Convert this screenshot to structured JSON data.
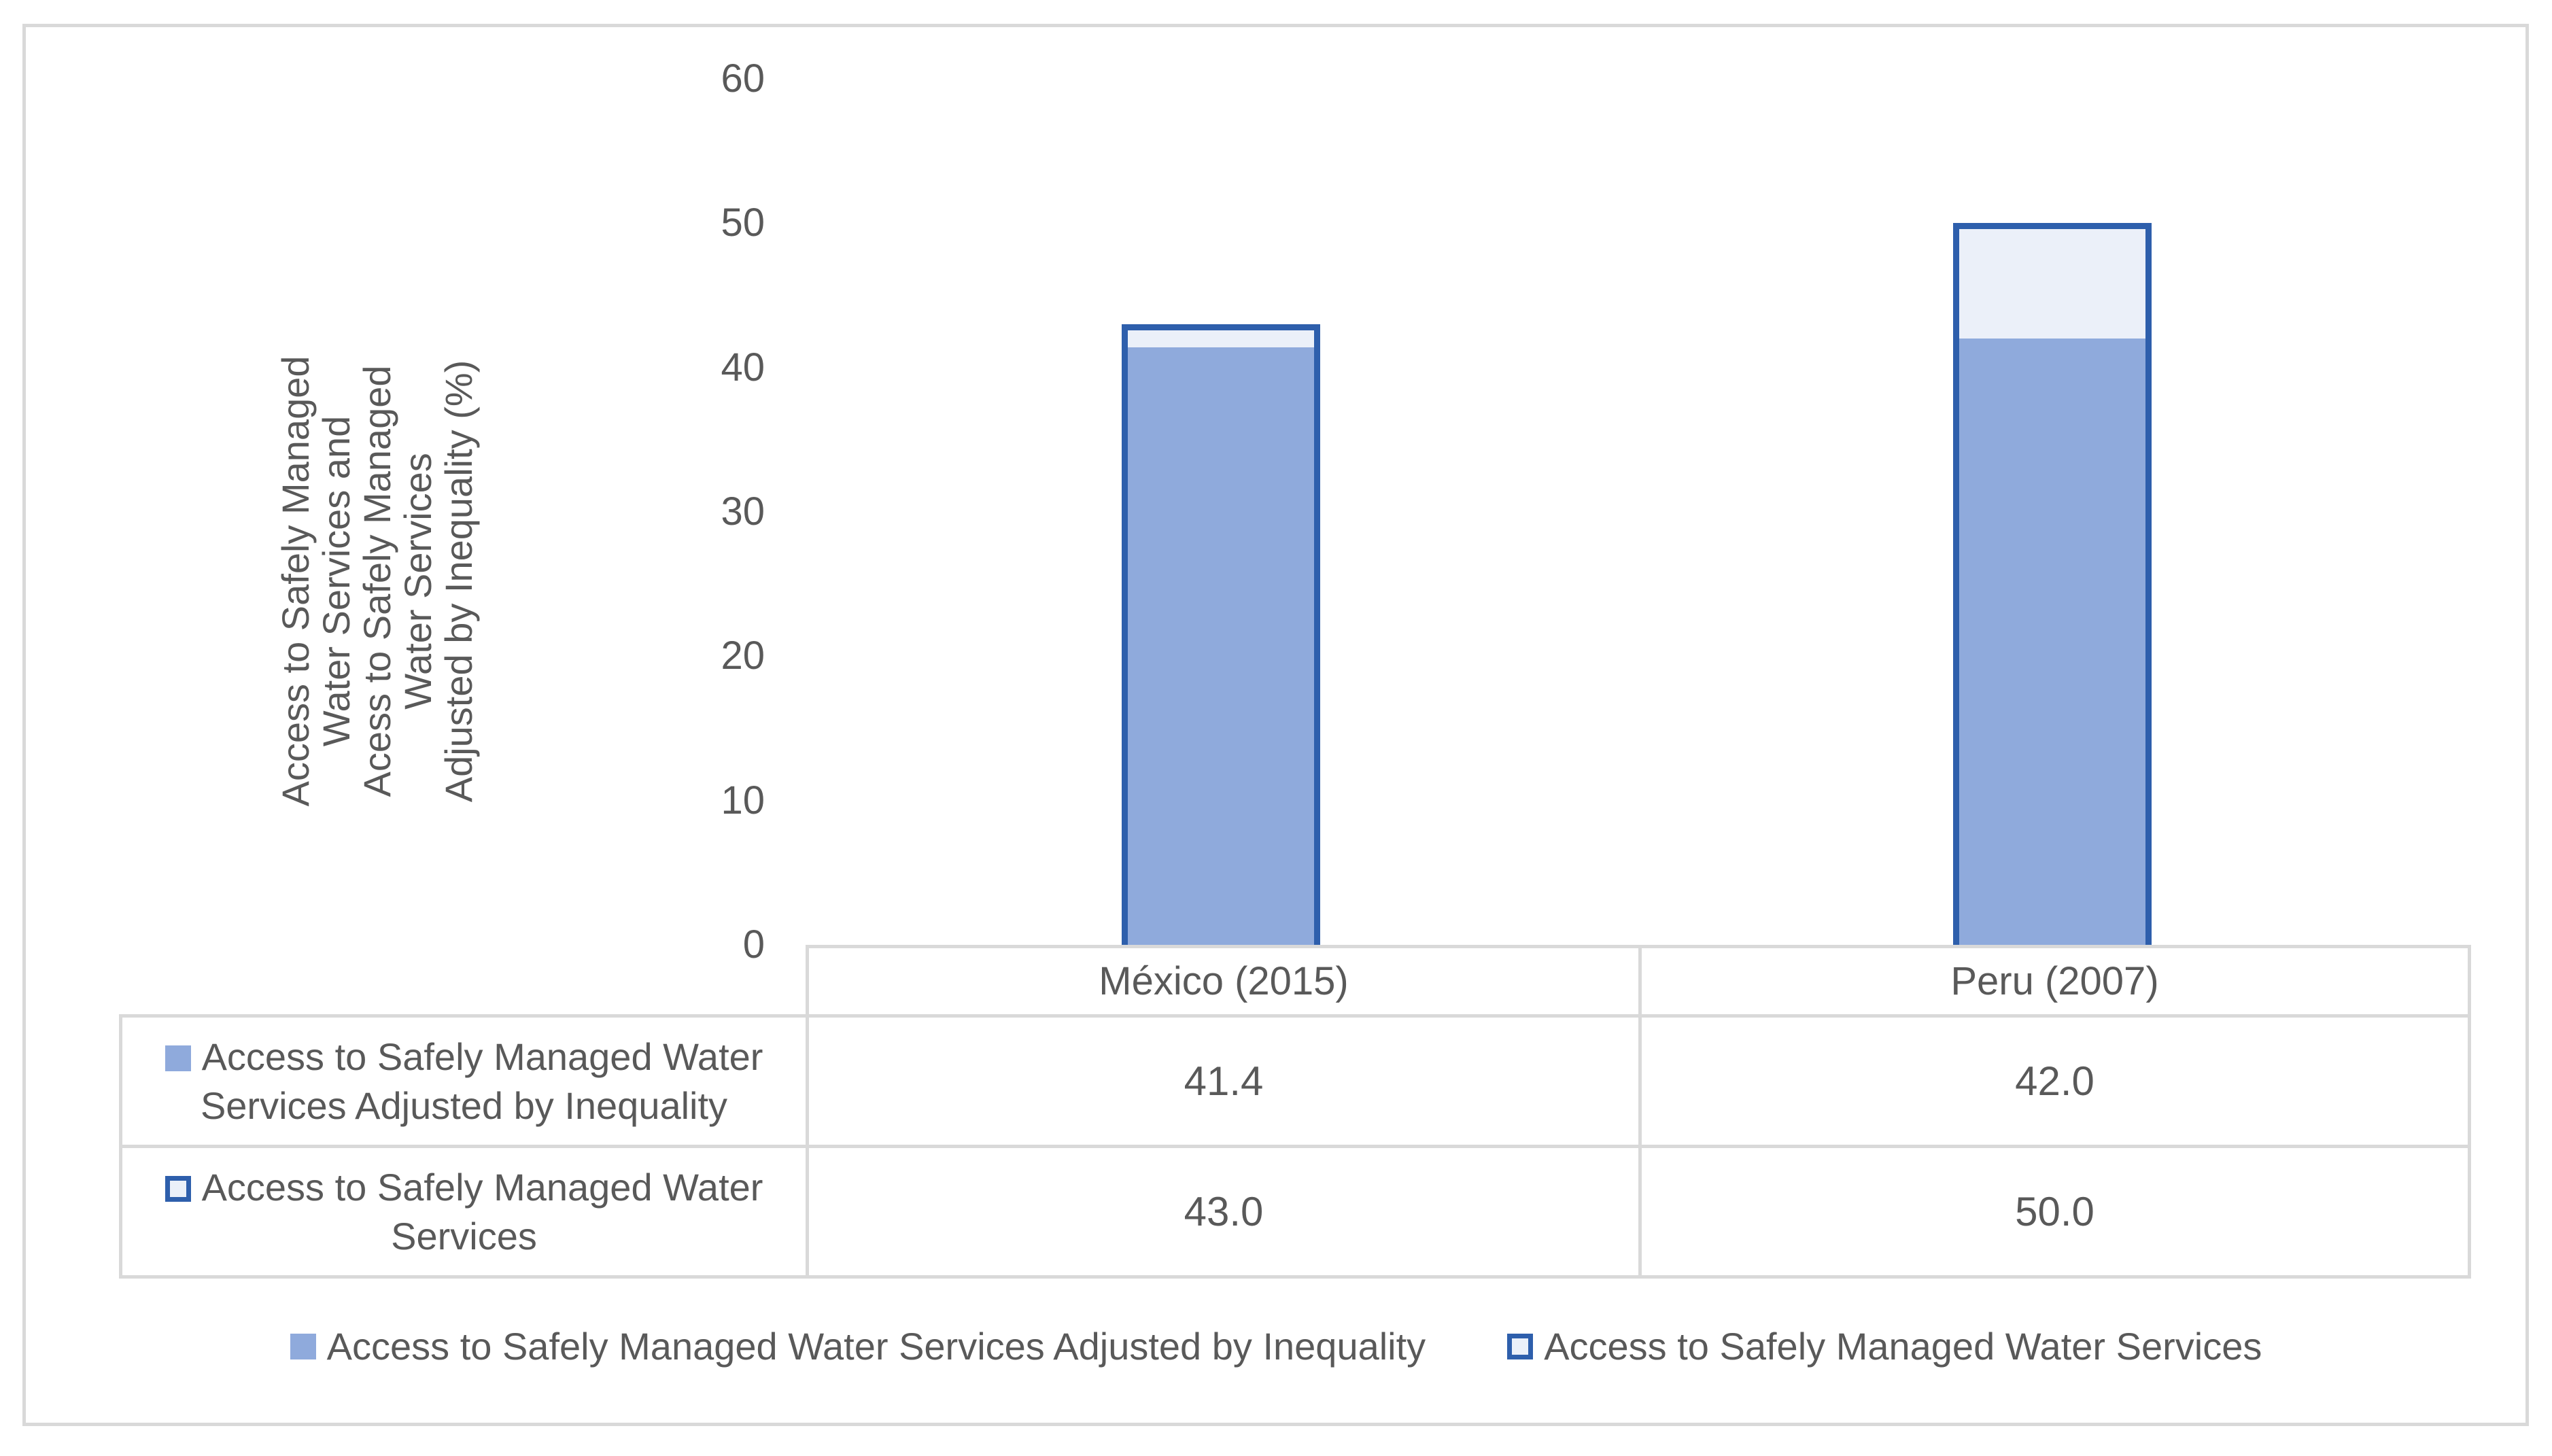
{
  "chart_data": {
    "type": "bar",
    "categories": [
      "México (2015)",
      "Peru (2007)"
    ],
    "series": [
      {
        "name": "Access to Safely Managed Water Services Adjusted by Inequality",
        "style": "filled",
        "values": [
          41.4,
          42.0
        ]
      },
      {
        "name": "Access to Safely Managed Water Services",
        "style": "outlined",
        "values": [
          43.0,
          50.0
        ]
      }
    ],
    "title": "",
    "xlabel": "",
    "ylabel_lines": [
      "Access to Safely Managed",
      "Water Services and",
      "Acess to Safely Managed",
      "Water Services",
      "Adjusted by Inequality (%)"
    ],
    "yticks": [
      60,
      50,
      40,
      30,
      20,
      10,
      0
    ],
    "ylim": [
      0,
      60
    ],
    "grid": false,
    "legend_position": "bottom",
    "colors": {
      "fill": "#8FAADC",
      "light_fill": "#EBF0F9",
      "border": "#2E5FAC",
      "text": "#595959",
      "table_border": "#D9D9D9"
    }
  },
  "table": {
    "categories": [
      "México (2015)",
      "Peru (2007)"
    ],
    "rows": [
      {
        "label": "Access to Safely Managed Water Services Adjusted by Inequality",
        "values": [
          "41.4",
          "42.0"
        ]
      },
      {
        "label": "Access to Safely Managed Water Services",
        "values": [
          "43.0",
          "50.0"
        ]
      }
    ]
  },
  "legend": {
    "items": [
      {
        "label": "Access to Safely Managed Water Services Adjusted by Inequality",
        "style": "filled"
      },
      {
        "label": "Access to Safely Managed Water Services",
        "style": "outlined"
      }
    ]
  }
}
